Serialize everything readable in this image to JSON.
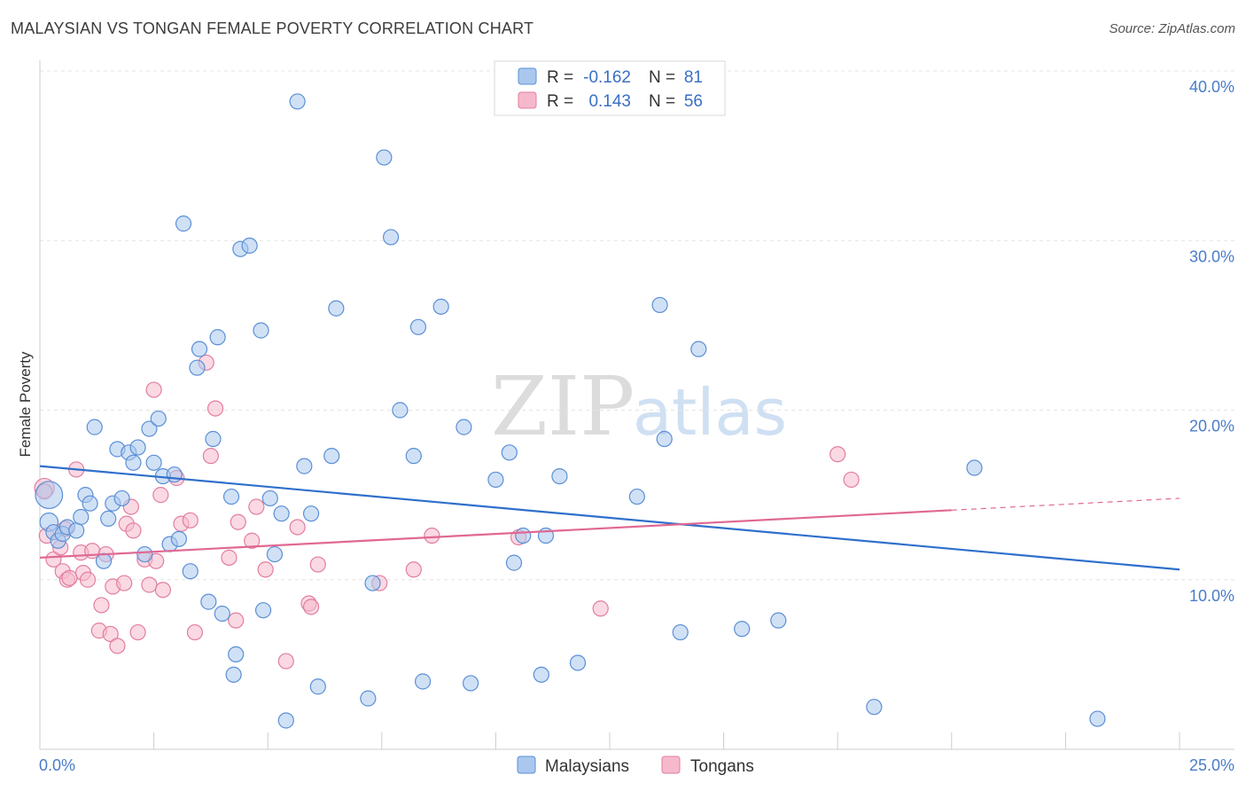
{
  "header": {
    "title": "MALAYSIAN VS TONGAN FEMALE POVERTY CORRELATION CHART",
    "source": "Source: ZipAtlas.com"
  },
  "watermark": {
    "part1": "ZIP",
    "part2": "atlas"
  },
  "legend": {
    "r_label": "R =",
    "n_label": "N =",
    "malaysians": {
      "r": "-0.162",
      "n": "81"
    },
    "tongans": {
      "r": "0.143",
      "n": "56"
    }
  },
  "chart_data": {
    "type": "scatter",
    "ylabel": "Female Poverty",
    "xlim": [
      0,
      25
    ],
    "ylim": [
      0,
      40
    ],
    "x_tick_labels": [
      "0.0%",
      "25.0%"
    ],
    "y_ticks": [
      10,
      20,
      30,
      40
    ],
    "y_tick_labels": [
      "10.0%",
      "20.0%",
      "30.0%",
      "40.0%"
    ],
    "grid": true,
    "legend_position": "top-center",
    "colors": {
      "malaysians_fill": "#aac8ee",
      "malaysians_stroke": "#5b8fd6",
      "malaysians_line": "#2f6fcc",
      "tongans_fill": "#f6b9cc",
      "tongans_stroke": "#e27ea0",
      "tongans_line": "#e06893"
    },
    "series": [
      {
        "name": "Malaysians",
        "trend": {
          "x": [
            0,
            25
          ],
          "y": [
            16.7,
            10.6
          ]
        },
        "points": [
          [
            0.2,
            15.0,
            1.8
          ],
          [
            0.2,
            13.4,
            1.2
          ],
          [
            0.3,
            12.8,
            1
          ],
          [
            0.4,
            12.3,
            1
          ],
          [
            0.5,
            12.7,
            1
          ],
          [
            0.6,
            13.1,
            1
          ],
          [
            0.8,
            12.9,
            1
          ],
          [
            0.9,
            13.7,
            1
          ],
          [
            1.0,
            15.0,
            1
          ],
          [
            1.1,
            14.5,
            1
          ],
          [
            1.2,
            19.0,
            1
          ],
          [
            1.4,
            11.1,
            1
          ],
          [
            1.5,
            13.6,
            1
          ],
          [
            1.6,
            14.5,
            1
          ],
          [
            1.8,
            14.8,
            1
          ],
          [
            1.7,
            17.7,
            1
          ],
          [
            1.95,
            17.5,
            1
          ],
          [
            2.05,
            16.9,
            1
          ],
          [
            2.15,
            17.8,
            1
          ],
          [
            2.3,
            11.5,
            1
          ],
          [
            2.4,
            18.9,
            1
          ],
          [
            2.5,
            16.9,
            1
          ],
          [
            2.6,
            19.5,
            1
          ],
          [
            2.7,
            16.1,
            1
          ],
          [
            2.85,
            12.1,
            1
          ],
          [
            2.95,
            16.2,
            1
          ],
          [
            3.05,
            12.4,
            1
          ],
          [
            3.15,
            31.0,
            1
          ],
          [
            3.3,
            10.5,
            1
          ],
          [
            3.45,
            22.5,
            1
          ],
          [
            3.5,
            23.6,
            1
          ],
          [
            3.7,
            8.7,
            1
          ],
          [
            3.8,
            18.3,
            1
          ],
          [
            3.9,
            24.3,
            1
          ],
          [
            4.0,
            8.0,
            1
          ],
          [
            4.2,
            14.9,
            1
          ],
          [
            4.3,
            5.6,
            1
          ],
          [
            4.25,
            4.4,
            1
          ],
          [
            4.4,
            29.5,
            1
          ],
          [
            4.6,
            29.7,
            1
          ],
          [
            4.85,
            24.7,
            1
          ],
          [
            4.9,
            8.2,
            1
          ],
          [
            5.05,
            14.8,
            1
          ],
          [
            5.15,
            11.5,
            1
          ],
          [
            5.3,
            13.9,
            1
          ],
          [
            5.4,
            1.7,
            1
          ],
          [
            5.65,
            38.2,
            1
          ],
          [
            5.8,
            16.7,
            1
          ],
          [
            5.95,
            13.9,
            1
          ],
          [
            6.1,
            3.7,
            1
          ],
          [
            6.4,
            17.3,
            1
          ],
          [
            6.5,
            26.0,
            1
          ],
          [
            7.2,
            3.0,
            1
          ],
          [
            7.3,
            9.8,
            1
          ],
          [
            7.55,
            34.9,
            1
          ],
          [
            7.7,
            30.2,
            1
          ],
          [
            7.9,
            20.0,
            1
          ],
          [
            8.2,
            17.3,
            1
          ],
          [
            8.3,
            24.9,
            1
          ],
          [
            8.4,
            4.0,
            1
          ],
          [
            8.8,
            26.1,
            1
          ],
          [
            9.3,
            19.0,
            1
          ],
          [
            9.45,
            3.9,
            1
          ],
          [
            10.0,
            15.9,
            1
          ],
          [
            10.3,
            17.5,
            1
          ],
          [
            10.4,
            11.0,
            1
          ],
          [
            10.6,
            12.6,
            1
          ],
          [
            11.0,
            4.4,
            1
          ],
          [
            11.1,
            12.6,
            1
          ],
          [
            11.4,
            16.1,
            1
          ],
          [
            11.8,
            5.1,
            1
          ],
          [
            13.1,
            14.9,
            1
          ],
          [
            13.6,
            26.2,
            1
          ],
          [
            13.7,
            18.3,
            1
          ],
          [
            14.05,
            6.9,
            1
          ],
          [
            14.45,
            23.6,
            1
          ],
          [
            15.4,
            7.1,
            1
          ],
          [
            16.2,
            7.6,
            1
          ],
          [
            18.3,
            2.5,
            1
          ],
          [
            20.5,
            16.6,
            1
          ],
          [
            23.2,
            1.8,
            1
          ]
        ]
      },
      {
        "name": "Tongans",
        "trend": {
          "x": [
            0,
            20.0
          ],
          "y": [
            11.3,
            14.1
          ]
        },
        "trend_dashed": {
          "x": [
            20.0,
            25
          ],
          "y": [
            14.1,
            14.8
          ]
        },
        "points": [
          [
            0.1,
            15.4,
            1.3
          ],
          [
            0.15,
            12.6,
            1
          ],
          [
            0.3,
            11.2,
            1
          ],
          [
            0.45,
            11.9,
            1
          ],
          [
            0.5,
            10.5,
            1
          ],
          [
            0.55,
            13.0,
            1
          ],
          [
            0.6,
            10.0,
            1
          ],
          [
            0.65,
            10.1,
            1
          ],
          [
            0.8,
            16.5,
            1
          ],
          [
            0.9,
            11.6,
            1
          ],
          [
            0.95,
            10.4,
            1
          ],
          [
            1.05,
            10.0,
            1
          ],
          [
            1.15,
            11.7,
            1
          ],
          [
            1.3,
            7.0,
            1
          ],
          [
            1.35,
            8.5,
            1
          ],
          [
            1.45,
            11.5,
            1
          ],
          [
            1.55,
            6.8,
            1
          ],
          [
            1.6,
            9.6,
            1
          ],
          [
            1.7,
            6.1,
            1
          ],
          [
            1.85,
            9.8,
            1
          ],
          [
            1.9,
            13.3,
            1
          ],
          [
            2.0,
            14.3,
            1
          ],
          [
            2.05,
            12.9,
            1
          ],
          [
            2.15,
            6.9,
            1
          ],
          [
            2.3,
            11.2,
            1
          ],
          [
            2.4,
            9.7,
            1
          ],
          [
            2.5,
            21.2,
            1
          ],
          [
            2.55,
            11.1,
            1
          ],
          [
            2.65,
            15.0,
            1
          ],
          [
            2.7,
            9.4,
            1
          ],
          [
            3.0,
            16.0,
            1
          ],
          [
            3.1,
            13.3,
            1
          ],
          [
            3.3,
            13.5,
            1
          ],
          [
            3.4,
            6.9,
            1
          ],
          [
            3.65,
            22.8,
            1
          ],
          [
            3.75,
            17.3,
            1
          ],
          [
            3.85,
            20.1,
            1
          ],
          [
            4.15,
            11.3,
            1
          ],
          [
            4.3,
            7.6,
            1
          ],
          [
            4.35,
            13.4,
            1
          ],
          [
            4.65,
            12.3,
            1
          ],
          [
            4.75,
            14.3,
            1
          ],
          [
            4.95,
            10.6,
            1
          ],
          [
            5.4,
            5.2,
            1
          ],
          [
            5.65,
            13.1,
            1
          ],
          [
            5.9,
            8.6,
            1
          ],
          [
            5.95,
            8.4,
            1
          ],
          [
            6.1,
            10.9,
            1
          ],
          [
            7.45,
            9.8,
            1
          ],
          [
            8.2,
            10.6,
            1
          ],
          [
            8.6,
            12.6,
            1
          ],
          [
            10.5,
            12.5,
            1
          ],
          [
            12.3,
            8.3,
            1
          ],
          [
            17.5,
            17.4,
            1
          ],
          [
            17.8,
            15.9,
            1
          ],
          [
            0.1,
            15.2,
            1
          ]
        ]
      }
    ]
  }
}
